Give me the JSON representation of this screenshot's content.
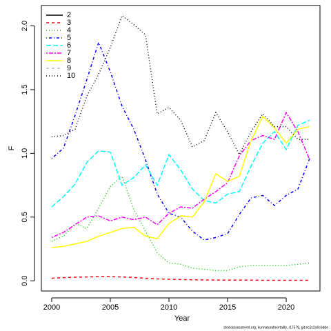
{
  "chart_data": {
    "type": "line",
    "xlabel": "Year",
    "ylabel": "F",
    "footer": "stockassessment.org, kunnaturalmortality, r17578, git:ec2c2a0c6dde",
    "x": [
      2000,
      2001,
      2002,
      2003,
      2004,
      2005,
      2006,
      2007,
      2008,
      2009,
      2010,
      2011,
      2012,
      2013,
      2014,
      2015,
      2016,
      2017,
      2018,
      2019,
      2020,
      2021,
      2022
    ],
    "xlim": [
      1999.12,
      2022.88
    ],
    "xticks": [
      2000,
      2005,
      2010,
      2015,
      2020
    ],
    "ylim": [
      -0.08,
      2.16
    ],
    "yticks": [
      {
        "value": 0,
        "label": "0.0"
      },
      0.5,
      {
        "value": 1,
        "label": "1.0"
      },
      1.5,
      {
        "value": 2,
        "label": "2.0"
      }
    ],
    "legend": "top-left",
    "series": [
      {
        "name": "2",
        "color": "#000000",
        "linetype": "solid",
        "values": [
          null,
          null,
          null,
          null,
          null,
          null,
          null,
          null,
          null,
          null,
          null,
          null,
          null,
          null,
          null,
          null,
          null,
          null,
          null,
          null,
          null,
          null,
          null
        ]
      },
      {
        "name": "3",
        "color": "#ff0000",
        "linetype": "dashed",
        "values": [
          0.02,
          0.025,
          0.028,
          0.03,
          0.033,
          0.033,
          0.03,
          0.026,
          0.02,
          0.015,
          0.012,
          0.01,
          0.008,
          0.007,
          0.006,
          0.005,
          0.005,
          0.005,
          0.004,
          0.004,
          0.004,
          0.004,
          0.004
        ]
      },
      {
        "name": "4",
        "color": "#00cd00",
        "linetype": "dotted",
        "values": [
          0.31,
          0.35,
          0.45,
          0.41,
          0.57,
          0.74,
          0.82,
          0.56,
          0.39,
          0.22,
          0.14,
          0.13,
          0.1,
          0.09,
          0.08,
          0.08,
          0.11,
          0.12,
          0.12,
          0.12,
          0.12,
          0.13,
          0.14
        ]
      },
      {
        "name": "5",
        "color": "#0000ff",
        "linetype": "dotdash",
        "values": [
          0.96,
          1.04,
          1.3,
          1.58,
          1.87,
          1.64,
          1.37,
          1.19,
          0.95,
          0.68,
          0.53,
          0.5,
          0.39,
          0.32,
          0.34,
          0.37,
          0.52,
          0.65,
          0.67,
          0.59,
          0.67,
          0.72,
          0.96
        ]
      },
      {
        "name": "6",
        "color": "#00ffff",
        "linetype": "longdash",
        "values": [
          0.58,
          0.66,
          0.76,
          0.93,
          1.02,
          1.01,
          0.75,
          0.81,
          0.91,
          0.75,
          0.99,
          0.87,
          0.72,
          0.63,
          0.61,
          0.68,
          0.7,
          0.9,
          1.08,
          1.17,
          1.03,
          1.22,
          1.26
        ]
      },
      {
        "name": "7",
        "color": "#ff00ff",
        "linetype": "twodash",
        "values": [
          0.34,
          0.38,
          0.44,
          0.5,
          0.51,
          0.47,
          0.5,
          0.48,
          0.5,
          0.44,
          0.53,
          0.58,
          0.57,
          0.64,
          0.7,
          0.77,
          0.98,
          1.1,
          1.14,
          1.11,
          1.32,
          1.17,
          0.95
        ]
      },
      {
        "name": "8",
        "color": "#ffff00",
        "linetype": "solid",
        "values": [
          0.26,
          0.27,
          0.29,
          0.31,
          0.35,
          0.38,
          0.41,
          0.42,
          0.35,
          0.33,
          0.45,
          0.51,
          0.5,
          0.62,
          0.84,
          0.78,
          0.82,
          1.1,
          1.29,
          1.2,
          1.08,
          1.19,
          1.21
        ]
      },
      {
        "name": "9",
        "color": "#bebebe",
        "linetype": "dashed",
        "values": [
          null,
          null,
          null,
          null,
          null,
          null,
          null,
          null,
          null,
          null,
          null,
          null,
          null,
          null,
          null,
          null,
          null,
          null,
          null,
          null,
          null,
          null,
          null
        ]
      },
      {
        "name": "10",
        "color": "#000000",
        "linetype": "dotted",
        "values": [
          1.13,
          1.14,
          1.19,
          1.45,
          1.62,
          1.83,
          2.08,
          2.01,
          1.93,
          1.31,
          1.36,
          1.26,
          1.05,
          1.1,
          1.32,
          1.17,
          0.99,
          1.17,
          1.31,
          1.21,
          1.21,
          1.11,
          1.11
        ]
      }
    ]
  }
}
